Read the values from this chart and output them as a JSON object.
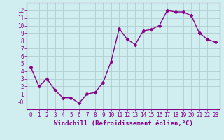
{
  "x": [
    0,
    1,
    2,
    3,
    4,
    5,
    6,
    7,
    8,
    9,
    10,
    11,
    12,
    13,
    14,
    15,
    16,
    17,
    18,
    19,
    20,
    21,
    22,
    23
  ],
  "y": [
    4.5,
    2.0,
    3.0,
    1.5,
    0.5,
    0.5,
    -0.2,
    1.0,
    1.2,
    2.5,
    5.3,
    9.6,
    8.2,
    7.5,
    9.3,
    9.5,
    10.0,
    12.0,
    11.8,
    11.8,
    11.3,
    9.0,
    8.2,
    7.8
  ],
  "line_color": "#880088",
  "marker": "D",
  "marker_size": 2.5,
  "bg_color": "#d0eef0",
  "grid_color": "#b0cdd0",
  "xlabel": "Windchill (Refroidissement éolien,°C)",
  "xlim": [
    -0.5,
    23.5
  ],
  "ylim": [
    -1,
    13
  ],
  "yticks": [
    0,
    1,
    2,
    3,
    4,
    5,
    6,
    7,
    8,
    9,
    10,
    11,
    12
  ],
  "xticks": [
    0,
    1,
    2,
    3,
    4,
    5,
    6,
    7,
    8,
    9,
    10,
    11,
    12,
    13,
    14,
    15,
    16,
    17,
    18,
    19,
    20,
    21,
    22,
    23
  ],
  "ytick_labels": [
    "-0",
    "1",
    "2",
    "3",
    "4",
    "5",
    "6",
    "7",
    "8",
    "9",
    "10",
    "11",
    "12"
  ],
  "label_color": "#880088",
  "tick_color": "#880088",
  "label_fontsize": 6.5,
  "tick_fontsize": 5.5,
  "linewidth": 1.0
}
